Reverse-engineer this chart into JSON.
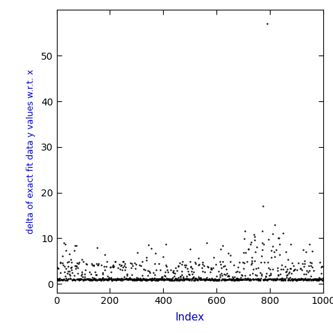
{
  "title": "",
  "xlabel": "Index",
  "ylabel": "delta of exact fit data y values w.r.t. x",
  "xlim": [
    0,
    1000
  ],
  "ylim": [
    -2,
    60
  ],
  "yticks": [
    0,
    10,
    20,
    30,
    40,
    50
  ],
  "xticks": [
    0,
    200,
    400,
    600,
    800,
    1000
  ],
  "point_color": "black",
  "point_size": 3,
  "background_color": "white",
  "label_color": "#0000CC",
  "seed": 42,
  "n": 1000,
  "outlier_x": 789,
  "outlier_y": 57,
  "outlier2_x": 774,
  "outlier2_y": 17
}
